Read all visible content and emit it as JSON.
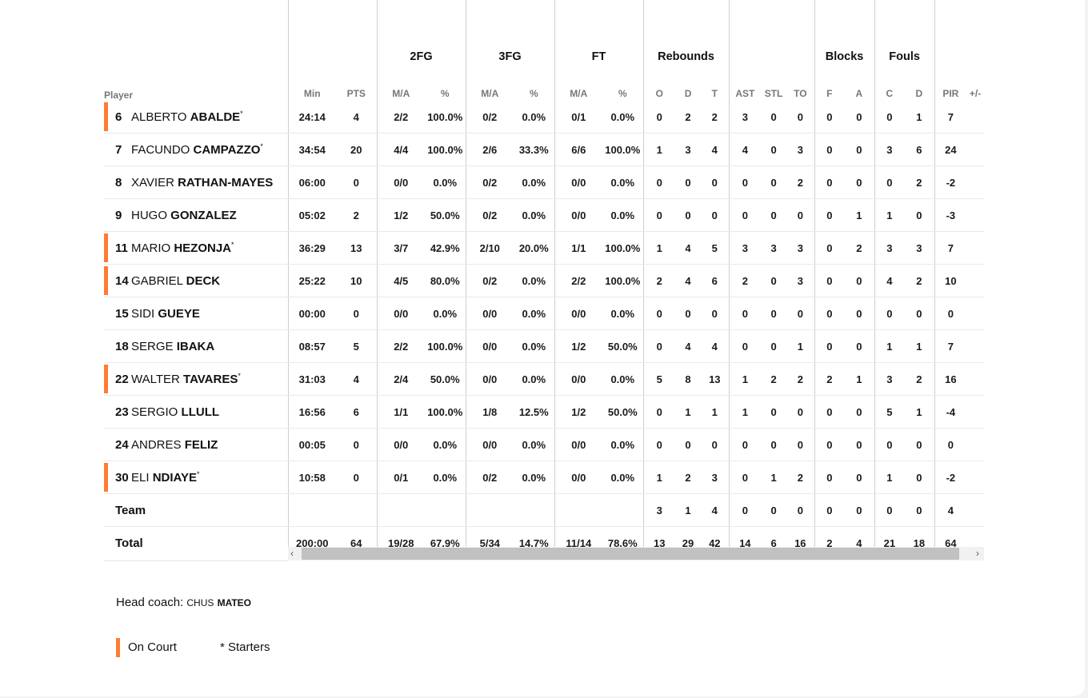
{
  "header": {
    "player_label": "Player",
    "groups": [
      "2FG",
      "3FG",
      "FT",
      "Rebounds",
      "Blocks",
      "Fouls"
    ],
    "columns": [
      "Min",
      "PTS",
      "M/A",
      "%",
      "M/A",
      "%",
      "M/A",
      "%",
      "O",
      "D",
      "T",
      "AST",
      "STL",
      "TO",
      "F",
      "A",
      "C",
      "D",
      "PIR",
      "+/-"
    ]
  },
  "players": [
    {
      "num": "6",
      "first": "ALBERTO",
      "last": "ABALDE",
      "starter": "*",
      "on_court": true,
      "stats": [
        "24:14",
        "4",
        "2/2",
        "100.0%",
        "0/2",
        "0.0%",
        "0/1",
        "0.0%",
        "0",
        "2",
        "2",
        "3",
        "0",
        "0",
        "0",
        "0",
        "0",
        "1",
        "7",
        ""
      ]
    },
    {
      "num": "7",
      "first": "FACUNDO",
      "last": "CAMPAZZO",
      "starter": "*",
      "on_court": false,
      "stats": [
        "34:54",
        "20",
        "4/4",
        "100.0%",
        "2/6",
        "33.3%",
        "6/6",
        "100.0%",
        "1",
        "3",
        "4",
        "4",
        "0",
        "3",
        "0",
        "0",
        "3",
        "6",
        "24",
        ""
      ]
    },
    {
      "num": "8",
      "first": "XAVIER",
      "last": "RATHAN-MAYES",
      "starter": "",
      "on_court": false,
      "stats": [
        "06:00",
        "0",
        "0/0",
        "0.0%",
        "0/2",
        "0.0%",
        "0/0",
        "0.0%",
        "0",
        "0",
        "0",
        "0",
        "0",
        "2",
        "0",
        "0",
        "0",
        "2",
        "-2",
        ""
      ]
    },
    {
      "num": "9",
      "first": "HUGO",
      "last": "GONZALEZ",
      "starter": "",
      "on_court": false,
      "stats": [
        "05:02",
        "2",
        "1/2",
        "50.0%",
        "0/2",
        "0.0%",
        "0/0",
        "0.0%",
        "0",
        "0",
        "0",
        "0",
        "0",
        "0",
        "0",
        "1",
        "1",
        "0",
        "-3",
        ""
      ]
    },
    {
      "num": "11",
      "first": "MARIO",
      "last": "HEZONJA",
      "starter": "*",
      "on_court": true,
      "stats": [
        "36:29",
        "13",
        "3/7",
        "42.9%",
        "2/10",
        "20.0%",
        "1/1",
        "100.0%",
        "1",
        "4",
        "5",
        "3",
        "3",
        "3",
        "0",
        "2",
        "3",
        "3",
        "7",
        ""
      ]
    },
    {
      "num": "14",
      "first": "GABRIEL",
      "last": "DECK",
      "starter": "",
      "on_court": true,
      "stats": [
        "25:22",
        "10",
        "4/5",
        "80.0%",
        "0/2",
        "0.0%",
        "2/2",
        "100.0%",
        "2",
        "4",
        "6",
        "2",
        "0",
        "3",
        "0",
        "0",
        "4",
        "2",
        "10",
        ""
      ]
    },
    {
      "num": "15",
      "first": "SIDI",
      "last": "GUEYE",
      "starter": "",
      "on_court": false,
      "stats": [
        "00:00",
        "0",
        "0/0",
        "0.0%",
        "0/0",
        "0.0%",
        "0/0",
        "0.0%",
        "0",
        "0",
        "0",
        "0",
        "0",
        "0",
        "0",
        "0",
        "0",
        "0",
        "0",
        ""
      ]
    },
    {
      "num": "18",
      "first": "SERGE",
      "last": "IBAKA",
      "starter": "",
      "on_court": false,
      "stats": [
        "08:57",
        "5",
        "2/2",
        "100.0%",
        "0/0",
        "0.0%",
        "1/2",
        "50.0%",
        "0",
        "4",
        "4",
        "0",
        "0",
        "1",
        "0",
        "0",
        "1",
        "1",
        "7",
        ""
      ]
    },
    {
      "num": "22",
      "first": "WALTER",
      "last": "TAVARES",
      "starter": "*",
      "on_court": true,
      "stats": [
        "31:03",
        "4",
        "2/4",
        "50.0%",
        "0/0",
        "0.0%",
        "0/0",
        "0.0%",
        "5",
        "8",
        "13",
        "1",
        "2",
        "2",
        "2",
        "1",
        "3",
        "2",
        "16",
        ""
      ]
    },
    {
      "num": "23",
      "first": "SERGIO",
      "last": "LLULL",
      "starter": "",
      "on_court": false,
      "stats": [
        "16:56",
        "6",
        "1/1",
        "100.0%",
        "1/8",
        "12.5%",
        "1/2",
        "50.0%",
        "0",
        "1",
        "1",
        "1",
        "0",
        "0",
        "0",
        "0",
        "5",
        "1",
        "-4",
        ""
      ]
    },
    {
      "num": "24",
      "first": "ANDRES",
      "last": "FELIZ",
      "starter": "",
      "on_court": false,
      "stats": [
        "00:05",
        "0",
        "0/0",
        "0.0%",
        "0/0",
        "0.0%",
        "0/0",
        "0.0%",
        "0",
        "0",
        "0",
        "0",
        "0",
        "0",
        "0",
        "0",
        "0",
        "0",
        "0",
        ""
      ]
    },
    {
      "num": "30",
      "first": "ELI",
      "last": "NDIAYE",
      "starter": "*",
      "on_court": true,
      "stats": [
        "10:58",
        "0",
        "0/1",
        "0.0%",
        "0/2",
        "0.0%",
        "0/0",
        "0.0%",
        "1",
        "2",
        "3",
        "0",
        "1",
        "2",
        "0",
        "0",
        "1",
        "0",
        "-2",
        ""
      ]
    }
  ],
  "team": {
    "label": "Team",
    "stats": [
      "",
      "",
      "",
      "",
      "",
      "",
      "",
      "",
      "3",
      "1",
      "4",
      "0",
      "0",
      "0",
      "0",
      "0",
      "0",
      "0",
      "4",
      ""
    ]
  },
  "total": {
    "label": "Total",
    "stats": [
      "200:00",
      "64",
      "19/28",
      "67.9%",
      "5/34",
      "14.7%",
      "11/14",
      "78.6%",
      "13",
      "29",
      "42",
      "14",
      "6",
      "16",
      "2",
      "4",
      "21",
      "18",
      "64",
      ""
    ]
  },
  "scrollbar": {
    "left_arrow": "‹",
    "right_arrow": "›"
  },
  "coach": {
    "label": "Head coach: ",
    "first": "CHUS",
    "last": "MATEO"
  },
  "legend": {
    "on_court": "On Court",
    "starters": "* Starters"
  },
  "colors": {
    "on_court_accent": "#ff7a33"
  }
}
